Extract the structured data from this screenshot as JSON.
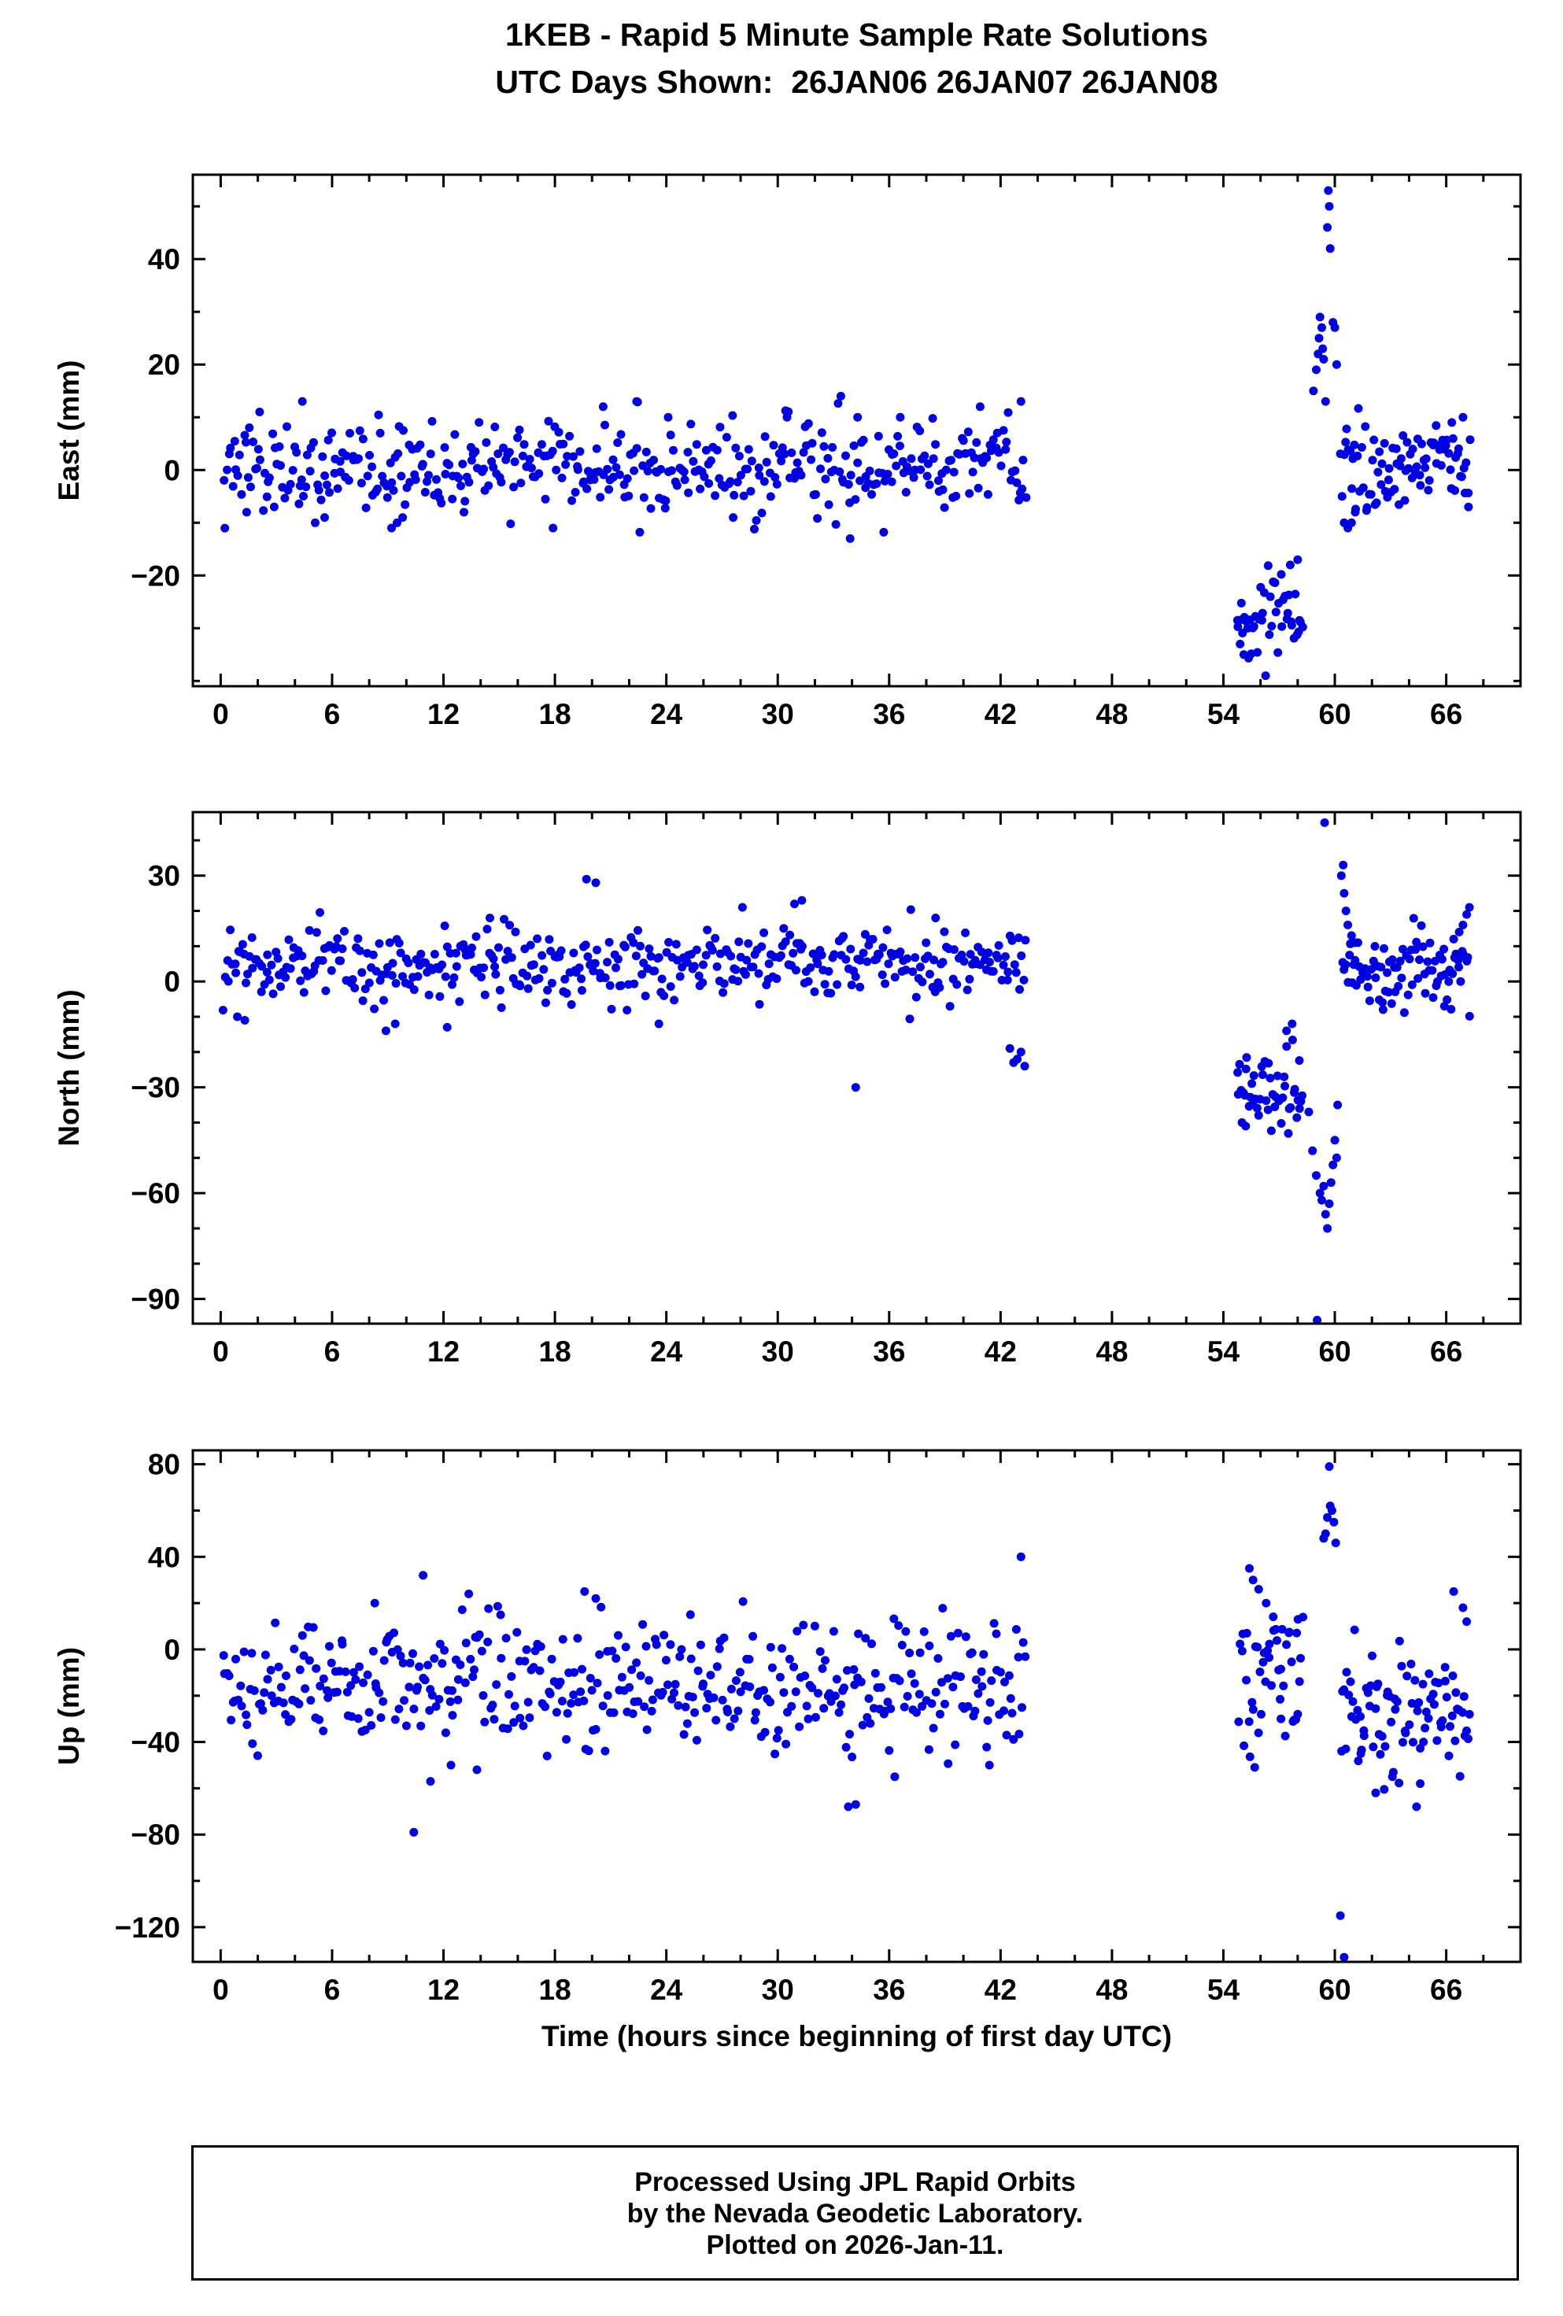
{
  "title": {
    "line1": "1KEB - Rapid 5 Minute Sample Rate Solutions",
    "line2": "UTC Days Shown:  26JAN06 26JAN07 26JAN08"
  },
  "footer": {
    "line1": "Processed Using JPL Rapid Orbits",
    "line2": "by the Nevada Geodetic Laboratory.",
    "line3": "Plotted on 2026-Jan-11."
  },
  "colors": {
    "point": "#0000e0",
    "frame": "#000000",
    "background": "#ffffff"
  },
  "chart_data": [
    {
      "type": "scatter",
      "name": "east",
      "ylabel": "East (mm)",
      "xlabel": "",
      "xlim": [
        -1.5,
        70
      ],
      "ylim": [
        -41,
        56
      ],
      "xticks": [
        0,
        6,
        12,
        18,
        24,
        30,
        36,
        42,
        48,
        54,
        60,
        66
      ],
      "yticks": [
        -20,
        0,
        20,
        40
      ],
      "x_minor_step": 2,
      "y_minor_step": 10,
      "clusters": [
        {
          "x0": 0.1,
          "x1": 43.4,
          "n": 430,
          "mean": 0.8,
          "std": 4.2,
          "seed": 11
        },
        {
          "x0": 54.7,
          "x1": 58.3,
          "n": 46,
          "mean": -27,
          "std": 4.0,
          "seed": 12
        },
        {
          "x0": 60.3,
          "x1": 67.3,
          "n": 88,
          "mean": 0.5,
          "std": 4.3,
          "seed": 13
        }
      ],
      "outliers": [
        [
          1.4,
          -8
        ],
        [
          2.1,
          11
        ],
        [
          4.4,
          13
        ],
        [
          5.6,
          -9
        ],
        [
          9.2,
          -11
        ],
        [
          9.5,
          -10
        ],
        [
          9.8,
          -9
        ],
        [
          13.1,
          -8
        ],
        [
          17.9,
          -11
        ],
        [
          20.6,
          12
        ],
        [
          22.4,
          13
        ],
        [
          24.1,
          10
        ],
        [
          27.6,
          -9
        ],
        [
          30.5,
          10
        ],
        [
          33.4,
          14
        ],
        [
          33.9,
          -13
        ],
        [
          34.3,
          10
        ],
        [
          36.6,
          10
        ],
        [
          40.9,
          12
        ],
        [
          43.1,
          13
        ],
        [
          54.9,
          -33
        ],
        [
          55.1,
          -35
        ],
        [
          55.3,
          -30
        ],
        [
          57.6,
          -18
        ],
        [
          58.0,
          -17
        ],
        [
          58.85,
          15
        ],
        [
          59.0,
          19
        ],
        [
          59.1,
          22
        ],
        [
          59.15,
          25
        ],
        [
          59.2,
          29
        ],
        [
          59.3,
          27
        ],
        [
          59.35,
          23
        ],
        [
          59.4,
          21
        ],
        [
          59.5,
          13
        ],
        [
          59.6,
          46
        ],
        [
          59.65,
          53
        ],
        [
          59.7,
          50
        ],
        [
          59.75,
          42
        ],
        [
          59.9,
          28
        ],
        [
          60.0,
          27
        ],
        [
          60.1,
          20
        ],
        [
          60.5,
          -10
        ],
        [
          60.7,
          -11
        ],
        [
          60.9,
          -10
        ],
        [
          61.1,
          -8
        ],
        [
          66.3,
          9
        ],
        [
          66.9,
          10
        ],
        [
          67.2,
          -7
        ]
      ]
    },
    {
      "type": "scatter",
      "name": "north",
      "ylabel": "North (mm)",
      "xlabel": "",
      "xlim": [
        -1.5,
        70
      ],
      "ylim": [
        -97,
        48
      ],
      "xticks": [
        0,
        6,
        12,
        18,
        24,
        30,
        36,
        42,
        48,
        54,
        60,
        66
      ],
      "yticks": [
        -90,
        -60,
        -30,
        0,
        30
      ],
      "x_minor_step": 2,
      "y_minor_step": 10,
      "clusters": [
        {
          "x0": 0.1,
          "x1": 43.4,
          "n": 430,
          "mean": 5,
          "std": 5.2,
          "seed": 21
        },
        {
          "x0": 54.7,
          "x1": 58.3,
          "n": 46,
          "mean": -30,
          "std": 5.5,
          "seed": 22
        },
        {
          "x0": 60.4,
          "x1": 67.3,
          "n": 85,
          "mean": 3.5,
          "std": 4.8,
          "seed": 23
        }
      ],
      "outliers": [
        [
          0.9,
          -10
        ],
        [
          1.3,
          -11
        ],
        [
          8.9,
          -14
        ],
        [
          9.4,
          -12
        ],
        [
          12.2,
          -13
        ],
        [
          14.5,
          18
        ],
        [
          19.7,
          29
        ],
        [
          20.2,
          28
        ],
        [
          23.6,
          -12
        ],
        [
          28.1,
          21
        ],
        [
          30.9,
          22
        ],
        [
          31.3,
          23
        ],
        [
          34.2,
          -30
        ],
        [
          38.5,
          18
        ],
        [
          42.5,
          -19
        ],
        [
          42.7,
          -23
        ],
        [
          42.9,
          -22
        ],
        [
          43.1,
          -20
        ],
        [
          43.3,
          -24
        ],
        [
          55.0,
          -40
        ],
        [
          55.2,
          -41
        ],
        [
          57.4,
          -14
        ],
        [
          57.7,
          -12
        ],
        [
          58.1,
          -36
        ],
        [
          58.6,
          -37
        ],
        [
          58.8,
          -48
        ],
        [
          59.0,
          -55
        ],
        [
          59.05,
          -96
        ],
        [
          59.2,
          -60
        ],
        [
          59.3,
          -62
        ],
        [
          59.4,
          -58
        ],
        [
          59.45,
          45
        ],
        [
          59.5,
          -66
        ],
        [
          59.6,
          -70
        ],
        [
          59.7,
          -63
        ],
        [
          59.8,
          -57
        ],
        [
          59.9,
          -52
        ],
        [
          60.0,
          -45
        ],
        [
          60.1,
          -50
        ],
        [
          60.15,
          -35
        ],
        [
          60.35,
          30
        ],
        [
          60.45,
          33
        ],
        [
          60.5,
          25
        ],
        [
          60.6,
          20
        ],
        [
          60.7,
          16
        ],
        [
          60.9,
          13
        ],
        [
          61.1,
          11
        ],
        [
          62.6,
          -8
        ],
        [
          65.9,
          -7
        ],
        [
          66.4,
          12
        ],
        [
          66.7,
          14
        ],
        [
          66.9,
          16
        ],
        [
          67.1,
          19
        ],
        [
          67.25,
          21
        ]
      ]
    },
    {
      "type": "scatter",
      "name": "up",
      "ylabel": "Up (mm)",
      "xlabel": "Time (hours since beginning of first day UTC)",
      "xlim": [
        -1.5,
        70
      ],
      "ylim": [
        -135,
        86
      ],
      "xticks": [
        0,
        6,
        12,
        18,
        24,
        30,
        36,
        42,
        48,
        54,
        60,
        66
      ],
      "yticks": [
        -120,
        -80,
        -40,
        0,
        40,
        80
      ],
      "x_minor_step": 2,
      "y_minor_step": 20,
      "clusters": [
        {
          "x0": 0.1,
          "x1": 43.4,
          "n": 430,
          "mean": -15,
          "std": 13,
          "seed": 31
        },
        {
          "x0": 54.8,
          "x1": 58.3,
          "n": 46,
          "mean": -6,
          "std": 15,
          "seed": 32
        },
        {
          "x0": 60.3,
          "x1": 67.3,
          "n": 88,
          "mean": -25,
          "std": 13,
          "seed": 33
        }
      ],
      "outliers": [
        [
          8.3,
          20
        ],
        [
          10.4,
          -79
        ],
        [
          10.9,
          32
        ],
        [
          11.3,
          -57
        ],
        [
          12.4,
          -50
        ],
        [
          13.8,
          -52
        ],
        [
          19.6,
          25
        ],
        [
          20.2,
          22
        ],
        [
          25.3,
          15
        ],
        [
          33.8,
          -68
        ],
        [
          34.2,
          -67
        ],
        [
          36.3,
          -55
        ],
        [
          41.4,
          -50
        ],
        [
          43.1,
          40
        ],
        [
          55.4,
          35
        ],
        [
          55.6,
          30
        ],
        [
          55.9,
          26
        ],
        [
          56.3,
          20
        ],
        [
          57.1,
          -30
        ],
        [
          58.0,
          -28
        ],
        [
          59.4,
          48
        ],
        [
          59.5,
          50
        ],
        [
          59.6,
          57
        ],
        [
          59.7,
          79
        ],
        [
          59.75,
          62
        ],
        [
          59.85,
          60
        ],
        [
          59.95,
          55
        ],
        [
          60.05,
          46
        ],
        [
          60.3,
          -115
        ],
        [
          60.5,
          -133
        ],
        [
          61.4,
          -45
        ],
        [
          62.2,
          -62
        ],
        [
          63.1,
          -55
        ],
        [
          64.4,
          -68
        ],
        [
          64.6,
          -58
        ],
        [
          66.4,
          25
        ],
        [
          66.9,
          18
        ],
        [
          67.1,
          12
        ]
      ]
    }
  ]
}
